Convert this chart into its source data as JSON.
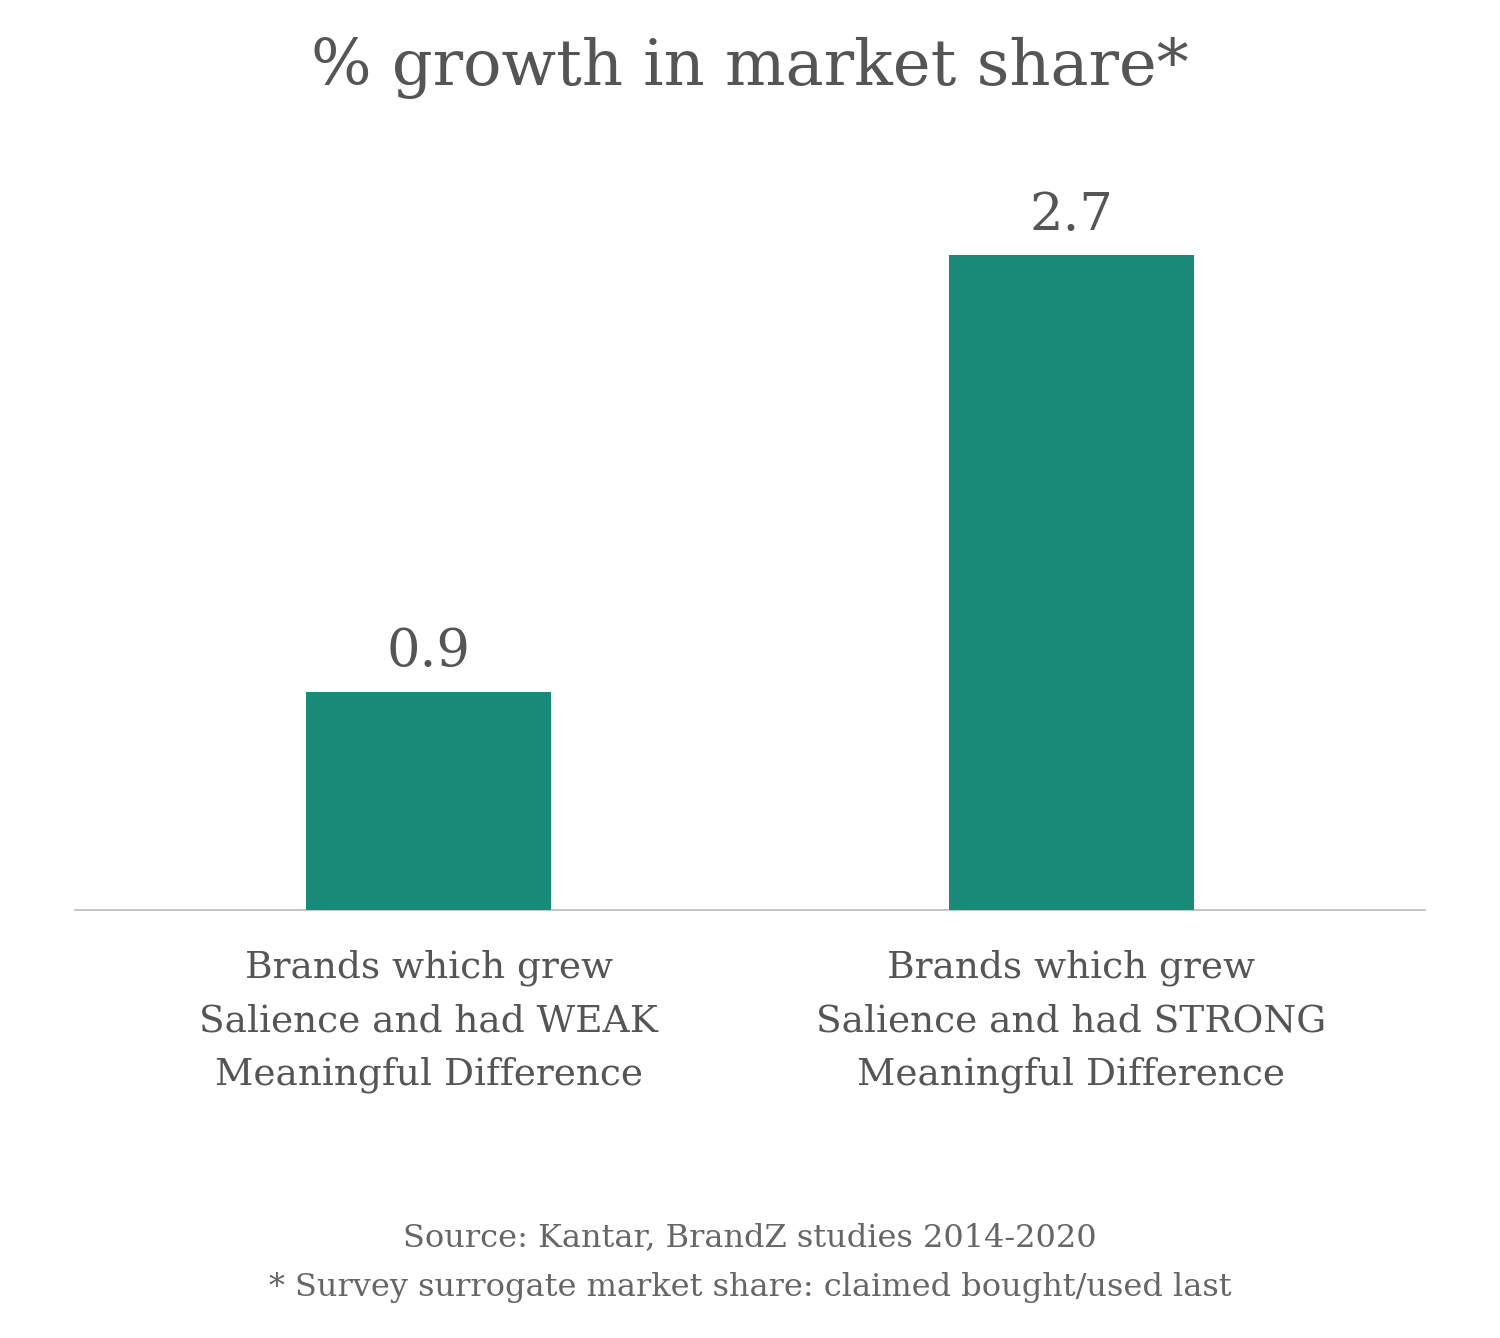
{
  "title": "% growth in market share*",
  "categories": [
    1,
    2
  ],
  "cat_labels": [
    "Brands which grew\nSalience and had WEAK\nMeaningful Difference",
    "Brands which grew\nSalience and had STRONG\nMeaningful Difference"
  ],
  "values": [
    0.9,
    2.7
  ],
  "bar_color": "#1a8a78",
  "value_labels": [
    "0.9",
    "2.7"
  ],
  "source_line1": "Source: Kantar, BrandZ studies 2014-2020",
  "source_line2": "* Survey surrogate market share: claimed bought/used last",
  "background_color": "#ffffff",
  "title_fontsize": 46,
  "label_fontsize": 27,
  "value_fontsize": 38,
  "source_fontsize": 23,
  "title_color": "#555555",
  "label_color": "#555555",
  "value_color": "#555555",
  "source_color": "#666666",
  "ylim": [
    0,
    3.2
  ],
  "bar_width": 0.38
}
